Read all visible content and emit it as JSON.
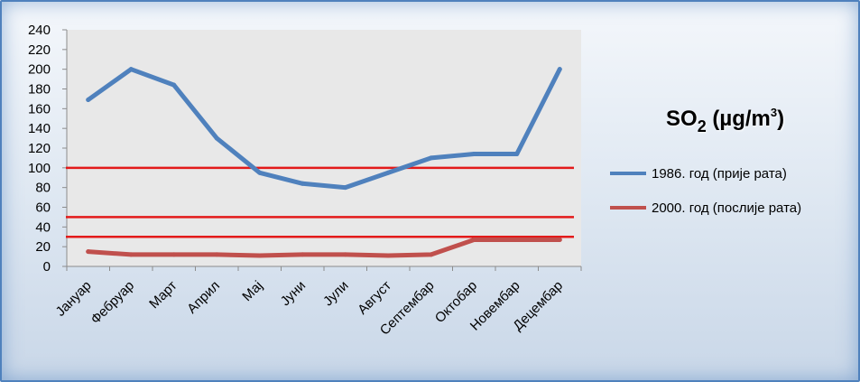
{
  "chart_data": {
    "type": "line",
    "title": {
      "prefix": "SO",
      "subscript": "2",
      "middle": " (µg/m",
      "superscript": "3",
      "suffix": ")"
    },
    "categories": [
      "Јануар",
      "Фебруар",
      "Март",
      "Април",
      "Мај",
      "Јуни",
      "Јули",
      "Август",
      "Септембар",
      "Октобар",
      "Новембар",
      "Децембар"
    ],
    "series": [
      {
        "name": "1986. год (прије рата)",
        "color": "#4f81bd",
        "values": [
          169,
          200,
          184,
          130,
          95,
          84,
          80,
          95,
          110,
          114,
          114,
          200
        ]
      },
      {
        "name": "2000. год (послије рата)",
        "color": "#c0504d",
        "values": [
          15,
          12,
          12,
          12,
          11,
          12,
          12,
          11,
          12,
          27,
          27,
          27
        ]
      }
    ],
    "reference_lines": [
      {
        "value": 100,
        "color": "#e31a1a"
      },
      {
        "value": 50,
        "color": "#e31a1a"
      },
      {
        "value": 30,
        "color": "#e31a1a"
      }
    ],
    "ylim": [
      0,
      240
    ],
    "yticks": [
      0,
      20,
      40,
      60,
      80,
      100,
      120,
      140,
      160,
      180,
      200,
      220,
      240
    ],
    "grid": false,
    "legend": "right"
  }
}
